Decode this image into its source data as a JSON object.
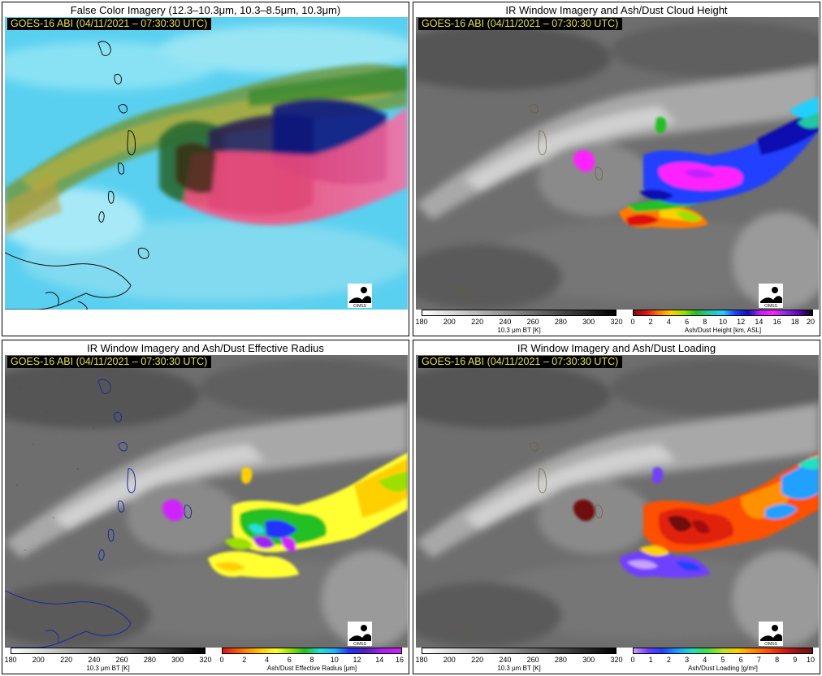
{
  "panels": [
    {
      "title": "False Color Imagery (12.3–10.3μm, 10.3–8.5μm, 10.3μm)",
      "timestamp": "GOES-16 ABI (04/11/2021 – 07:30:30 UTC)"
    },
    {
      "title": "IR Window Imagery and Ash/Dust Cloud Height",
      "timestamp": "GOES-16 ABI (04/11/2021 – 07:30:30 UTC)",
      "colorbar_ir": {
        "ticks": [
          "180",
          "200",
          "220",
          "240",
          "260",
          "280",
          "300",
          "320"
        ],
        "label": "10.3 μm BT [K]"
      },
      "colorbar_product": {
        "ticks": [
          "0",
          "2",
          "4",
          "6",
          "8",
          "10",
          "12",
          "14",
          "16",
          "18",
          "20"
        ],
        "label": "Ash/Dust Height [km, ASL]"
      }
    },
    {
      "title": "IR Window Imagery and Ash/Dust Effective Radius",
      "timestamp": "GOES-16 ABI (04/11/2021 – 07:30:30 UTC)",
      "colorbar_ir": {
        "ticks": [
          "180",
          "200",
          "220",
          "240",
          "260",
          "280",
          "300",
          "320"
        ],
        "label": "10.3 μm BT [K]"
      },
      "colorbar_product": {
        "ticks": [
          "0",
          "2",
          "4",
          "6",
          "8",
          "10",
          "12",
          "14",
          "16"
        ],
        "label": "Ash/Dust Effective Radius [μm]"
      }
    },
    {
      "title": "IR Window Imagery and Ash/Dust Loading",
      "timestamp": "GOES-16 ABI (04/11/2021 – 07:30:30 UTC)",
      "colorbar_ir": {
        "ticks": [
          "180",
          "200",
          "220",
          "240",
          "260",
          "280",
          "300",
          "320"
        ],
        "label": "10.3 μm BT [K]"
      },
      "colorbar_product": {
        "ticks": [
          "0",
          "1",
          "2",
          "3",
          "4",
          "5",
          "6",
          "7",
          "8",
          "9",
          "10"
        ],
        "label": "Ash/Dust Loading [g/m²]"
      }
    }
  ],
  "colors": {
    "timestamp_text": "#e7e23a",
    "coastline_false_color": "#111111",
    "coastline_ir": "#1a2a9a",
    "height_scale": [
      "#7a1010",
      "#e01010",
      "#ff7a00",
      "#ffd000",
      "#9be000",
      "#22c020",
      "#20c8a0",
      "#20d0ff",
      "#2040ff",
      "#1010b0",
      "#c020ff",
      "#ff20ff",
      "#8a2be2",
      "#6a00c0",
      "#000000"
    ],
    "radius_scale": [
      "#e01010",
      "#ff7a00",
      "#ffd000",
      "#ffff30",
      "#9be000",
      "#22c020",
      "#20e0e0",
      "#20b0ff",
      "#2030ff",
      "#5020c0",
      "#a020f0",
      "#d020ff"
    ],
    "loading_scale": [
      "#c8a0ff",
      "#7040ff",
      "#2040ff",
      "#20a0ff",
      "#20e0c0",
      "#40e040",
      "#c0e020",
      "#ffd000",
      "#ff9000",
      "#ff5000",
      "#e02010",
      "#a01010",
      "#701010"
    ]
  },
  "icons": [
    "noaa-logo-icon",
    "cimss-logo-icon"
  ]
}
